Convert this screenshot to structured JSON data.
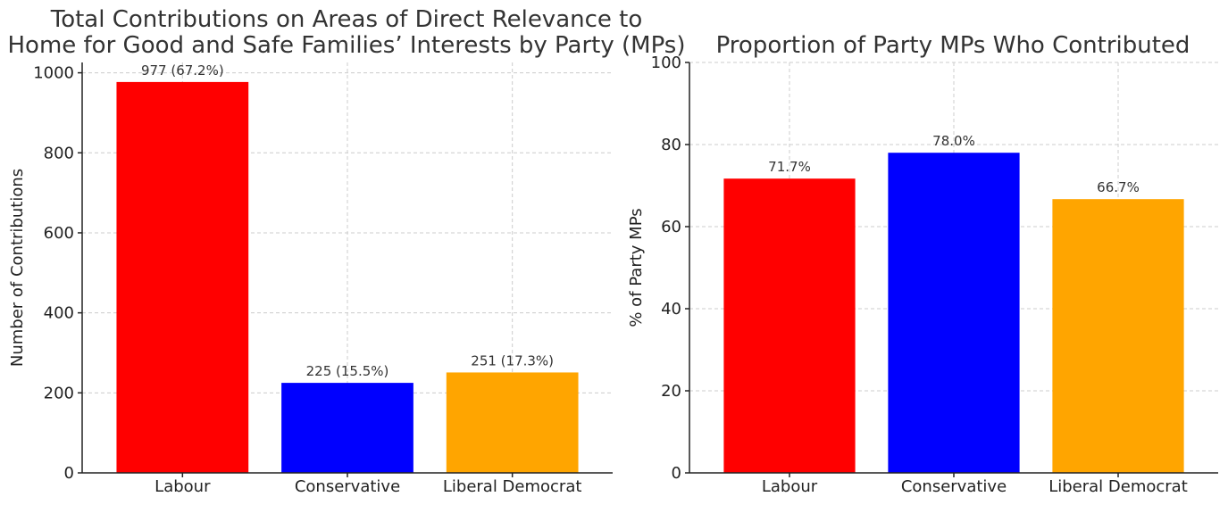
{
  "chart_data": [
    {
      "type": "bar",
      "title_lines": [
        "Total Contributions on Areas of Direct Relevance to",
        "Home for Good and Safe Families’ Interests by Party (MPs)"
      ],
      "xlabel": "",
      "ylabel": "Number of Contributions",
      "categories": [
        "Labour",
        "Conservative",
        "Liberal Democrat"
      ],
      "values": [
        977,
        225,
        251
      ],
      "data_labels": [
        "977 (67.2%)",
        "225 (15.5%)",
        "251 (17.3%)"
      ],
      "colors": [
        "#ff0000",
        "#0000ff",
        "#ffa500"
      ],
      "ylim": [
        0,
        1025.85
      ],
      "yticks": [
        0,
        200,
        400,
        600,
        800,
        1000
      ],
      "grid": true
    },
    {
      "type": "bar",
      "title_lines": [
        "Proportion of Party MPs Who Contributed"
      ],
      "xlabel": "",
      "ylabel": "% of Party MPs",
      "categories": [
        "Labour",
        "Conservative",
        "Liberal Democrat"
      ],
      "values": [
        71.7,
        78.0,
        66.7
      ],
      "data_labels": [
        "71.7%",
        "78.0%",
        "66.7%"
      ],
      "colors": [
        "#ff0000",
        "#0000ff",
        "#ffa500"
      ],
      "ylim": [
        0,
        100
      ],
      "yticks": [
        0,
        20,
        40,
        60,
        80,
        100
      ],
      "grid": true
    }
  ]
}
